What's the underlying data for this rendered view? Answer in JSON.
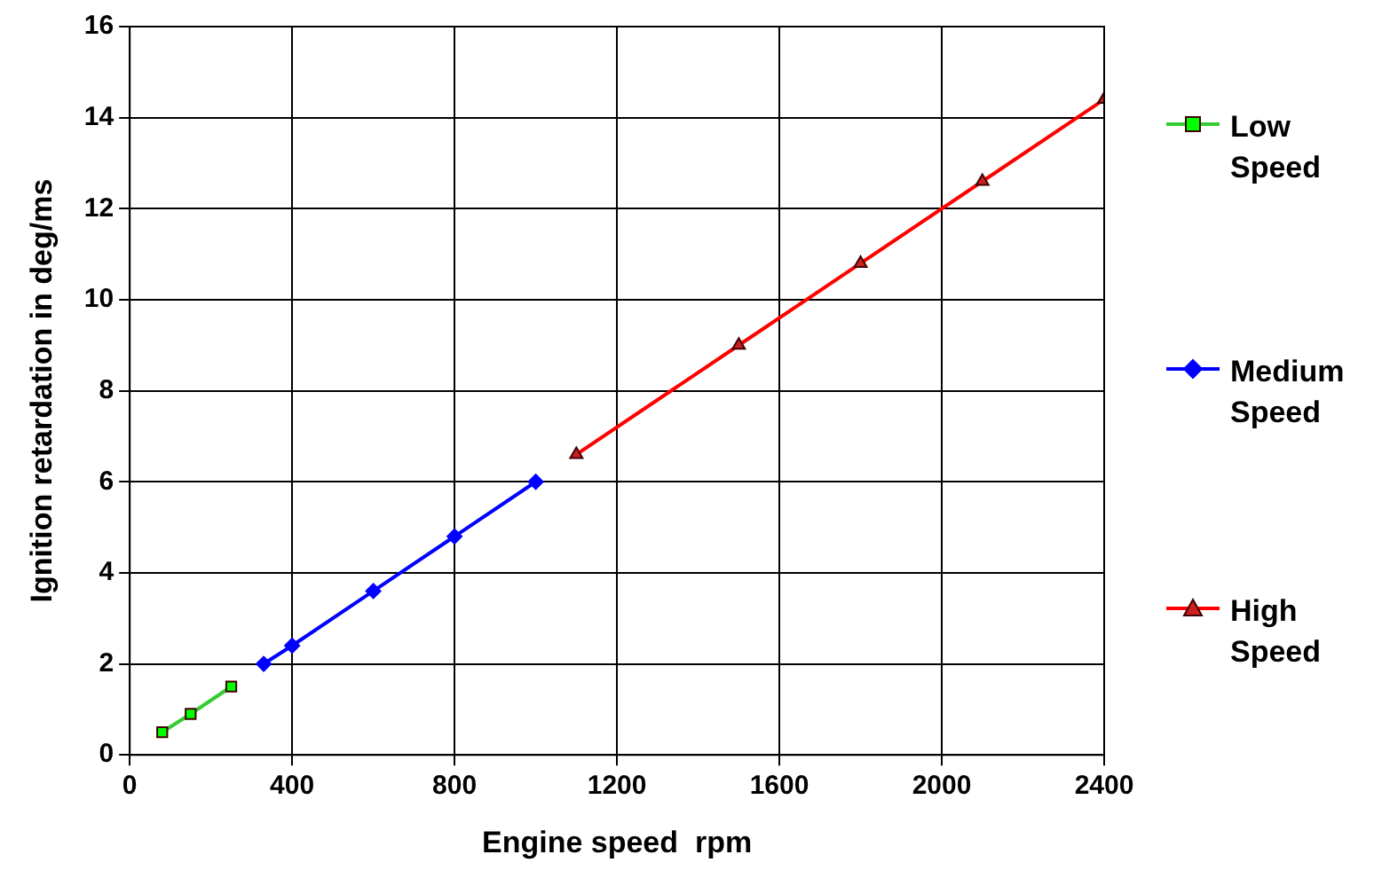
{
  "chart_data": {
    "type": "line",
    "xlabel": "Engine speed  rpm",
    "ylabel": "Ignition retardation in deg/ms",
    "xlim": [
      0,
      2400
    ],
    "xticks": [
      0,
      400,
      800,
      1200,
      1600,
      2000,
      2400
    ],
    "ylim": [
      0,
      16
    ],
    "yticks": [
      0,
      2,
      4,
      6,
      8,
      10,
      12,
      14,
      16
    ],
    "grid": true,
    "legend": "right",
    "line_style": "solid",
    "series": [
      {
        "name": "Low Speed",
        "color": "#33cc33",
        "marker": "square",
        "x": [
          80,
          150,
          250
        ],
        "values": [
          0.5,
          0.9,
          1.5
        ]
      },
      {
        "name": "Medium Speed",
        "color": "#0000ff",
        "marker": "diamond",
        "x": [
          330,
          400,
          600,
          800,
          1000
        ],
        "values": [
          2.0,
          2.4,
          3.6,
          4.8,
          6.0
        ]
      },
      {
        "name": "High Speed",
        "color": "#ff0000",
        "marker": "triangle",
        "x": [
          1100,
          1500,
          1800,
          2100,
          2400
        ],
        "values": [
          6.6,
          9.0,
          10.8,
          12.6,
          14.4
        ]
      }
    ]
  }
}
